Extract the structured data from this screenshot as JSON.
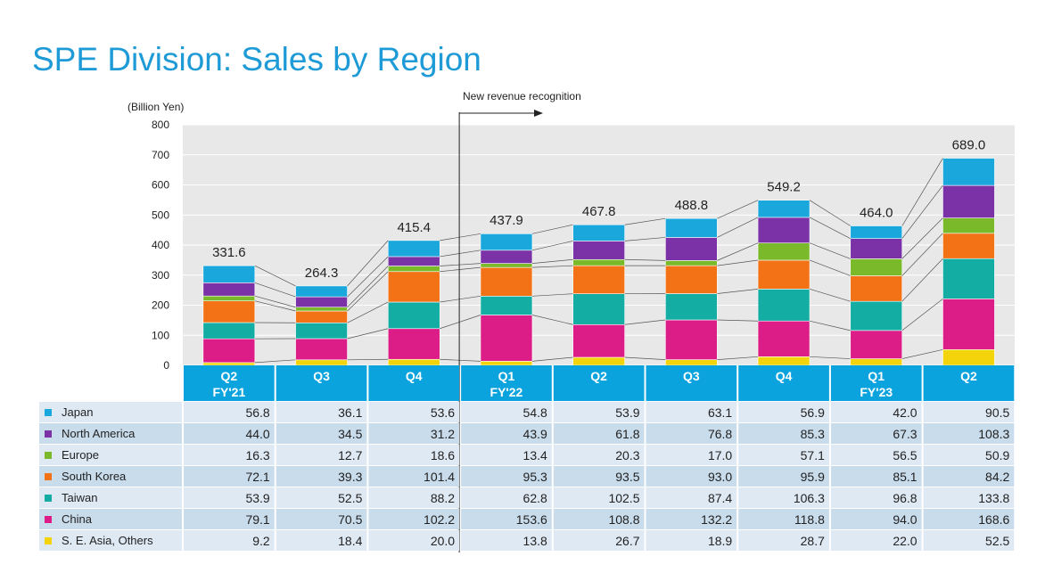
{
  "title": "SPE Division: Sales by Region",
  "chart_data": {
    "type": "bar",
    "stacked": true,
    "unit_label": "(Billion Yen)",
    "ylim": [
      0,
      800
    ],
    "yticks": [
      0,
      100,
      200,
      300,
      400,
      500,
      600,
      700,
      800
    ],
    "annotation": "New revenue recognition",
    "categories": [
      {
        "quarter": "Q2",
        "fy": "FY'21"
      },
      {
        "quarter": "Q3",
        "fy": ""
      },
      {
        "quarter": "Q4",
        "fy": ""
      },
      {
        "quarter": "Q1",
        "fy": "FY'22"
      },
      {
        "quarter": "Q2",
        "fy": ""
      },
      {
        "quarter": "Q3",
        "fy": ""
      },
      {
        "quarter": "Q4",
        "fy": ""
      },
      {
        "quarter": "Q1",
        "fy": "FY'23"
      },
      {
        "quarter": "Q2",
        "fy": ""
      }
    ],
    "totals": [
      "331.6",
      "264.3",
      "415.4",
      "437.9",
      "467.8",
      "488.8",
      "549.2",
      "464.0",
      "689.0"
    ],
    "series": [
      {
        "name": "Japan",
        "color": "#1aa7dc",
        "values": [
          "56.8",
          "36.1",
          "53.6",
          "54.8",
          "53.9",
          "63.1",
          "56.9",
          "42.0",
          "90.5"
        ]
      },
      {
        "name": "North America",
        "color": "#7b32a6",
        "values": [
          "44.0",
          "34.5",
          "31.2",
          "43.9",
          "61.8",
          "76.8",
          "85.3",
          "67.3",
          "108.3"
        ]
      },
      {
        "name": "Europe",
        "color": "#7aba2a",
        "values": [
          "16.3",
          "12.7",
          "18.6",
          "13.4",
          "20.3",
          "17.0",
          "57.1",
          "56.5",
          "50.9"
        ]
      },
      {
        "name": "South Korea",
        "color": "#f47216",
        "values": [
          "72.1",
          "39.3",
          "101.4",
          "95.3",
          "93.5",
          "93.0",
          "95.9",
          "85.1",
          "84.2"
        ]
      },
      {
        "name": "Taiwan",
        "color": "#13ada4",
        "values": [
          "53.9",
          "52.5",
          "88.2",
          "62.8",
          "102.5",
          "87.4",
          "106.3",
          "96.8",
          "133.8"
        ]
      },
      {
        "name": "China",
        "color": "#dc1c87",
        "values": [
          "79.1",
          "70.5",
          "102.2",
          "153.6",
          "108.8",
          "132.2",
          "118.8",
          "94.0",
          "168.6"
        ]
      },
      {
        "name": "S. E. Asia, Others",
        "color": "#f3d40b",
        "values": [
          "9.2",
          "18.4",
          "20.0",
          "13.8",
          "26.7",
          "18.9",
          "28.7",
          "22.0",
          "52.5"
        ]
      }
    ]
  }
}
